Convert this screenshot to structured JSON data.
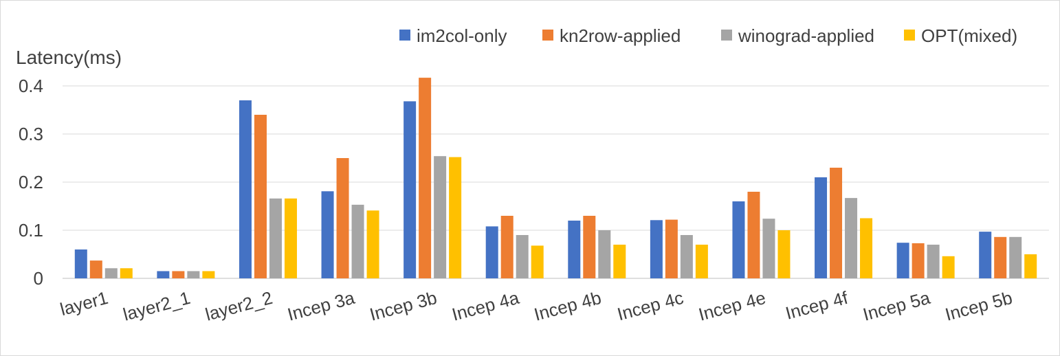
{
  "chart_data": {
    "type": "bar",
    "ylabel": "Latency(ms)",
    "ylim": [
      0,
      0.4
    ],
    "yticks": [
      "0",
      "0.1",
      "0.2",
      "0.3",
      "0.4"
    ],
    "grid": true,
    "legend_position": "top-right",
    "categories": [
      "layer1",
      "layer2_1",
      "layer2_2",
      "Incep 3a",
      "Incep 3b",
      "Incep 4a",
      "Incep 4b",
      "Incep 4c",
      "Incep 4e",
      "Incep 4f",
      "Incep 5a",
      "Incep 5b"
    ],
    "series": [
      {
        "name": "im2col-only",
        "color": "#4472C4",
        "values": [
          0.06,
          0.015,
          0.37,
          0.181,
          0.368,
          0.108,
          0.12,
          0.121,
          0.16,
          0.21,
          0.074,
          0.097
        ]
      },
      {
        "name": "kn2row-applied",
        "color": "#ED7D31",
        "values": [
          0.037,
          0.015,
          0.34,
          0.25,
          0.417,
          0.13,
          0.13,
          0.122,
          0.18,
          0.23,
          0.073,
          0.086
        ]
      },
      {
        "name": "winograd-applied",
        "color": "#A5A5A5",
        "values": [
          0.021,
          0.015,
          0.166,
          0.153,
          0.254,
          0.09,
          0.1,
          0.09,
          0.124,
          0.167,
          0.07,
          0.086
        ]
      },
      {
        "name": "OPT(mixed)",
        "color": "#FFC000",
        "values": [
          0.021,
          0.015,
          0.166,
          0.141,
          0.252,
          0.068,
          0.07,
          0.07,
          0.1,
          0.125,
          0.046,
          0.05
        ]
      }
    ]
  }
}
